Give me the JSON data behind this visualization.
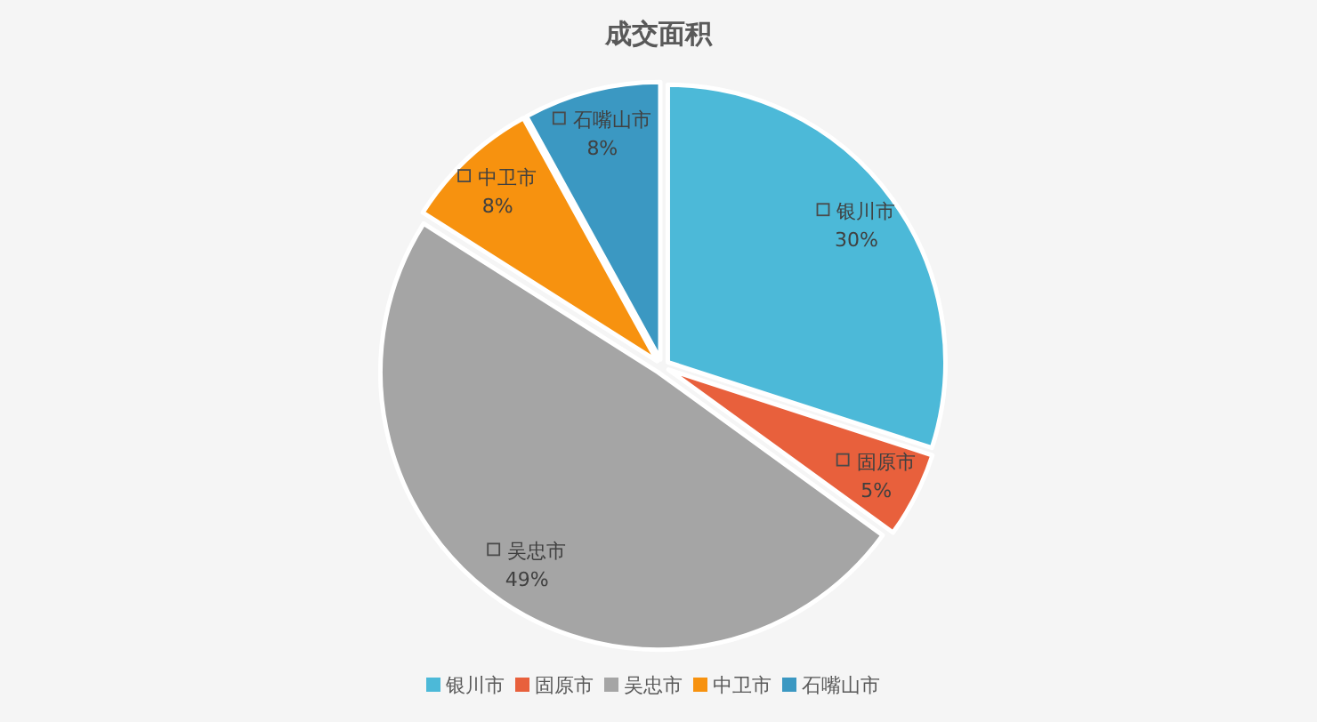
{
  "chart_data": {
    "type": "pie",
    "title": "成交面积",
    "categories": [
      "银川市",
      "固原市",
      "吴忠市",
      "中卫市",
      "石嘴山市"
    ],
    "values": [
      30,
      5,
      49,
      8,
      8
    ],
    "value_labels": [
      "30%",
      "5%",
      "49%",
      "8%",
      "8%"
    ],
    "colors": [
      "#4cb9d8",
      "#e8603c",
      "#a5a5a5",
      "#f7920f",
      "#3b98c2"
    ],
    "legend": "bottom"
  }
}
